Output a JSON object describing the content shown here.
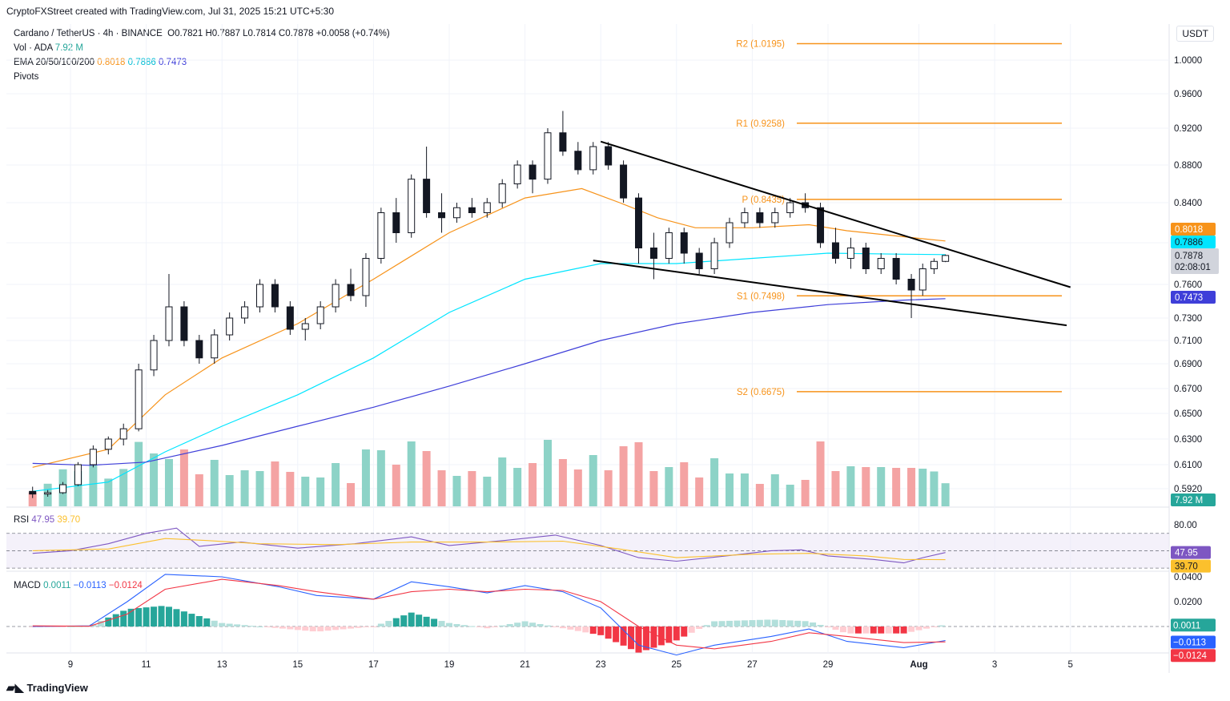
{
  "caption": "CryptoFXStreet created with TradingView.com, Jul 31, 2025 15:21 UTC+5:30",
  "legend": {
    "symbol": "Cardano / TetherUS · 4h · BINANCE",
    "ohlc": "O0.7821 H0.7887 L0.7814 C0.7878",
    "change": "+0.0058 (+0.74%)",
    "vol_label": "Vol · ADA",
    "vol_value": "7.92 M",
    "ema_label": "EMA 20/50/100/200",
    "ema_20": "0.8018",
    "ema_50": "0.7886",
    "ema_100": "0.7473",
    "pivots_label": "Pivots"
  },
  "currency": "USDT",
  "footer": "TradingView",
  "colors": {
    "up": "#26a69a",
    "down": "#000000",
    "ema20": "#f7931a",
    "ema50": "#00e5ff",
    "ema200": "#3f3fd9",
    "pivot": "#f7931a",
    "rsi": "#7e57c2",
    "rsi_ma": "#fbc02d",
    "macd": "#2962ff",
    "signal": "#f23645"
  },
  "chart_data": [
    {
      "type": "line",
      "title": "Cardano / TetherUS · 4h · BINANCE",
      "x_ticks": [
        "9",
        "11",
        "13",
        "15",
        "17",
        "19",
        "21",
        "23",
        "25",
        "27",
        "29",
        "Aug",
        "3",
        "5"
      ],
      "y_ticks": [
        "1.0000",
        "0.9600",
        "0.9200",
        "0.8800",
        "0.8400",
        "0.8000",
        "0.7600",
        "0.7300",
        "0.7100",
        "0.6900",
        "0.6700",
        "0.6500",
        "0.6300",
        "0.6100",
        "0.5920"
      ],
      "ylim": [
        0.585,
        1.04
      ],
      "price_badges": [
        {
          "label": "0.8018",
          "value": 0.8018,
          "color": "#f7931a"
        },
        {
          "label": "0.7886",
          "value": 0.7886,
          "color": "#00e5ff"
        },
        {
          "label": "0.7878",
          "value": 0.7878,
          "color": "#131722",
          "sub": "02:08:01"
        },
        {
          "label": "0.7473",
          "value": 0.7473,
          "color": "#3f3fd9"
        }
      ],
      "pivots": [
        {
          "label": "R2 (1.0195)",
          "value": 1.0195
        },
        {
          "label": "R1 (0.9258)",
          "value": 0.9258
        },
        {
          "label": "P (0.8435)",
          "value": 0.8435
        },
        {
          "label": "S1 (0.7498)",
          "value": 0.7498
        },
        {
          "label": "S2 (0.6675)",
          "value": 0.6675
        }
      ],
      "trendlines": [
        {
          "name": "upper",
          "from": [
            23.0,
            0.9055
          ],
          "to": [
            35.4,
            0.7575
          ]
        },
        {
          "name": "lower",
          "from": [
            22.8,
            0.783
          ],
          "to": [
            35.3,
            0.7235
          ]
        }
      ],
      "candles": [
        {
          "x": 8.0,
          "o": 0.59,
          "h": 0.5935,
          "l": 0.585,
          "c": 0.588
        },
        {
          "x": 8.4,
          "o": 0.588,
          "h": 0.591,
          "l": 0.586,
          "c": 0.589
        },
        {
          "x": 8.8,
          "o": 0.589,
          "h": 0.597,
          "l": 0.588,
          "c": 0.595
        },
        {
          "x": 9.2,
          "o": 0.595,
          "h": 0.612,
          "l": 0.594,
          "c": 0.61
        },
        {
          "x": 9.6,
          "o": 0.61,
          "h": 0.625,
          "l": 0.608,
          "c": 0.622
        },
        {
          "x": 10.0,
          "o": 0.622,
          "h": 0.632,
          "l": 0.618,
          "c": 0.63
        },
        {
          "x": 10.4,
          "o": 0.63,
          "h": 0.642,
          "l": 0.625,
          "c": 0.638
        },
        {
          "x": 10.8,
          "o": 0.638,
          "h": 0.69,
          "l": 0.636,
          "c": 0.685
        },
        {
          "x": 11.2,
          "o": 0.685,
          "h": 0.715,
          "l": 0.68,
          "c": 0.71
        },
        {
          "x": 11.6,
          "o": 0.71,
          "h": 0.77,
          "l": 0.705,
          "c": 0.74
        },
        {
          "x": 12.0,
          "o": 0.74,
          "h": 0.745,
          "l": 0.705,
          "c": 0.71
        },
        {
          "x": 12.4,
          "o": 0.71,
          "h": 0.715,
          "l": 0.69,
          "c": 0.695
        },
        {
          "x": 12.8,
          "o": 0.695,
          "h": 0.72,
          "l": 0.69,
          "c": 0.715
        },
        {
          "x": 13.2,
          "o": 0.715,
          "h": 0.735,
          "l": 0.71,
          "c": 0.73
        },
        {
          "x": 13.6,
          "o": 0.73,
          "h": 0.745,
          "l": 0.725,
          "c": 0.74
        },
        {
          "x": 14.0,
          "o": 0.74,
          "h": 0.765,
          "l": 0.735,
          "c": 0.76
        },
        {
          "x": 14.4,
          "o": 0.76,
          "h": 0.765,
          "l": 0.735,
          "c": 0.74
        },
        {
          "x": 14.8,
          "o": 0.74,
          "h": 0.745,
          "l": 0.715,
          "c": 0.72
        },
        {
          "x": 15.2,
          "o": 0.72,
          "h": 0.73,
          "l": 0.71,
          "c": 0.725
        },
        {
          "x": 15.6,
          "o": 0.725,
          "h": 0.745,
          "l": 0.72,
          "c": 0.74
        },
        {
          "x": 16.0,
          "o": 0.74,
          "h": 0.765,
          "l": 0.735,
          "c": 0.76
        },
        {
          "x": 16.4,
          "o": 0.76,
          "h": 0.775,
          "l": 0.745,
          "c": 0.75
        },
        {
          "x": 16.8,
          "o": 0.75,
          "h": 0.79,
          "l": 0.74,
          "c": 0.785
        },
        {
          "x": 17.2,
          "o": 0.785,
          "h": 0.835,
          "l": 0.78,
          "c": 0.83
        },
        {
          "x": 17.6,
          "o": 0.83,
          "h": 0.845,
          "l": 0.8,
          "c": 0.81
        },
        {
          "x": 18.0,
          "o": 0.81,
          "h": 0.87,
          "l": 0.805,
          "c": 0.865
        },
        {
          "x": 18.4,
          "o": 0.865,
          "h": 0.9,
          "l": 0.825,
          "c": 0.83
        },
        {
          "x": 18.8,
          "o": 0.83,
          "h": 0.85,
          "l": 0.81,
          "c": 0.825
        },
        {
          "x": 19.2,
          "o": 0.825,
          "h": 0.84,
          "l": 0.82,
          "c": 0.835
        },
        {
          "x": 19.6,
          "o": 0.835,
          "h": 0.845,
          "l": 0.825,
          "c": 0.83
        },
        {
          "x": 20.0,
          "o": 0.83,
          "h": 0.845,
          "l": 0.825,
          "c": 0.84
        },
        {
          "x": 20.4,
          "o": 0.84,
          "h": 0.865,
          "l": 0.835,
          "c": 0.86
        },
        {
          "x": 20.8,
          "o": 0.86,
          "h": 0.885,
          "l": 0.855,
          "c": 0.88
        },
        {
          "x": 21.2,
          "o": 0.88,
          "h": 0.885,
          "l": 0.85,
          "c": 0.865
        },
        {
          "x": 21.6,
          "o": 0.865,
          "h": 0.92,
          "l": 0.86,
          "c": 0.915
        },
        {
          "x": 22.0,
          "o": 0.915,
          "h": 0.94,
          "l": 0.89,
          "c": 0.895
        },
        {
          "x": 22.4,
          "o": 0.895,
          "h": 0.905,
          "l": 0.87,
          "c": 0.875
        },
        {
          "x": 22.8,
          "o": 0.875,
          "h": 0.905,
          "l": 0.87,
          "c": 0.9
        },
        {
          "x": 23.2,
          "o": 0.9,
          "h": 0.905,
          "l": 0.875,
          "c": 0.88
        },
        {
          "x": 23.6,
          "o": 0.88,
          "h": 0.885,
          "l": 0.84,
          "c": 0.845
        },
        {
          "x": 24.0,
          "o": 0.845,
          "h": 0.85,
          "l": 0.78,
          "c": 0.795
        },
        {
          "x": 24.4,
          "o": 0.795,
          "h": 0.81,
          "l": 0.765,
          "c": 0.785
        },
        {
          "x": 24.8,
          "o": 0.785,
          "h": 0.815,
          "l": 0.78,
          "c": 0.81
        },
        {
          "x": 25.2,
          "o": 0.81,
          "h": 0.815,
          "l": 0.78,
          "c": 0.79
        },
        {
          "x": 25.6,
          "o": 0.79,
          "h": 0.795,
          "l": 0.77,
          "c": 0.775
        },
        {
          "x": 26.0,
          "o": 0.775,
          "h": 0.805,
          "l": 0.77,
          "c": 0.8
        },
        {
          "x": 26.4,
          "o": 0.8,
          "h": 0.825,
          "l": 0.795,
          "c": 0.82
        },
        {
          "x": 26.8,
          "o": 0.82,
          "h": 0.835,
          "l": 0.815,
          "c": 0.83
        },
        {
          "x": 27.2,
          "o": 0.83,
          "h": 0.835,
          "l": 0.815,
          "c": 0.82
        },
        {
          "x": 27.6,
          "o": 0.82,
          "h": 0.835,
          "l": 0.815,
          "c": 0.83
        },
        {
          "x": 28.0,
          "o": 0.83,
          "h": 0.845,
          "l": 0.825,
          "c": 0.84
        },
        {
          "x": 28.4,
          "o": 0.84,
          "h": 0.85,
          "l": 0.83,
          "c": 0.835
        },
        {
          "x": 28.8,
          "o": 0.835,
          "h": 0.84,
          "l": 0.795,
          "c": 0.8
        },
        {
          "x": 29.2,
          "o": 0.8,
          "h": 0.815,
          "l": 0.78,
          "c": 0.785
        },
        {
          "x": 29.6,
          "o": 0.785,
          "h": 0.805,
          "l": 0.775,
          "c": 0.795
        },
        {
          "x": 30.0,
          "o": 0.795,
          "h": 0.8,
          "l": 0.77,
          "c": 0.775
        },
        {
          "x": 30.4,
          "o": 0.775,
          "h": 0.79,
          "l": 0.77,
          "c": 0.785
        },
        {
          "x": 30.8,
          "o": 0.785,
          "h": 0.79,
          "l": 0.76,
          "c": 0.765
        },
        {
          "x": 31.2,
          "o": 0.765,
          "h": 0.77,
          "l": 0.73,
          "c": 0.755
        },
        {
          "x": 31.5,
          "o": 0.755,
          "h": 0.78,
          "l": 0.75,
          "c": 0.775
        },
        {
          "x": 31.8,
          "o": 0.775,
          "h": 0.785,
          "l": 0.77,
          "c": 0.7821
        },
        {
          "x": 32.1,
          "o": 0.7821,
          "h": 0.7887,
          "l": 0.7814,
          "c": 0.7878
        }
      ],
      "ema20": [
        [
          8.0,
          0.608
        ],
        [
          10.0,
          0.622
        ],
        [
          11.5,
          0.665
        ],
        [
          13.0,
          0.695
        ],
        [
          15.0,
          0.725
        ],
        [
          17.0,
          0.765
        ],
        [
          19.0,
          0.81
        ],
        [
          21.0,
          0.845
        ],
        [
          22.5,
          0.855
        ],
        [
          23.5,
          0.84
        ],
        [
          24.5,
          0.825
        ],
        [
          25.5,
          0.815
        ],
        [
          27.0,
          0.815
        ],
        [
          28.5,
          0.818
        ],
        [
          29.5,
          0.812
        ],
        [
          30.5,
          0.808
        ],
        [
          31.5,
          0.804
        ],
        [
          32.1,
          0.8018
        ]
      ],
      "ema50": [
        [
          8.0,
          0.59
        ],
        [
          10.0,
          0.597
        ],
        [
          11.5,
          0.62
        ],
        [
          13.0,
          0.64
        ],
        [
          15.0,
          0.665
        ],
        [
          17.0,
          0.695
        ],
        [
          19.0,
          0.735
        ],
        [
          21.0,
          0.765
        ],
        [
          23.0,
          0.78
        ],
        [
          25.0,
          0.78
        ],
        [
          27.0,
          0.785
        ],
        [
          29.0,
          0.79
        ],
        [
          31.0,
          0.789
        ],
        [
          32.1,
          0.7886
        ]
      ],
      "ema200": [
        [
          8.0,
          0.611
        ],
        [
          9.5,
          0.6095
        ],
        [
          11.0,
          0.612
        ],
        [
          13.0,
          0.625
        ],
        [
          15.0,
          0.64
        ],
        [
          17.0,
          0.655
        ],
        [
          19.0,
          0.672
        ],
        [
          21.0,
          0.69
        ],
        [
          23.0,
          0.71
        ],
        [
          25.0,
          0.725
        ],
        [
          27.0,
          0.735
        ],
        [
          29.0,
          0.742
        ],
        [
          31.0,
          0.746
        ],
        [
          32.1,
          0.7473
        ]
      ]
    },
    {
      "type": "bar",
      "title": "Vol · ADA",
      "value_label": "7.92 M"
    },
    {
      "type": "line",
      "title": "RSI",
      "series": [
        {
          "name": "47.95",
          "values": [
            [
              8.0,
              47
            ],
            [
              9.0,
              50
            ],
            [
              10.0,
              58
            ],
            [
              11.0,
              70
            ],
            [
              11.8,
              76
            ],
            [
              12.4,
              55
            ],
            [
              13.5,
              60
            ],
            [
              15.0,
              53
            ],
            [
              16.5,
              58
            ],
            [
              18.0,
              66
            ],
            [
              19.0,
              56
            ],
            [
              20.5,
              62
            ],
            [
              21.8,
              68
            ],
            [
              23.0,
              56
            ],
            [
              24.0,
              42
            ],
            [
              25.0,
              38
            ],
            [
              26.5,
              45
            ],
            [
              27.5,
              50
            ],
            [
              28.3,
              51
            ],
            [
              29.0,
              44
            ],
            [
              30.2,
              40
            ],
            [
              31.0,
              36
            ],
            [
              31.5,
              42
            ],
            [
              32.1,
              47.95
            ]
          ]
        },
        {
          "name": "39.70",
          "values": [
            [
              8.0,
              50
            ],
            [
              10.0,
              52
            ],
            [
              11.5,
              64
            ],
            [
              12.5,
              62
            ],
            [
              14.0,
              58
            ],
            [
              16.0,
              57
            ],
            [
              18.0,
              60
            ],
            [
              20.0,
              60
            ],
            [
              22.0,
              61
            ],
            [
              23.5,
              52
            ],
            [
              25.0,
              42
            ],
            [
              27.0,
              46
            ],
            [
              28.5,
              47
            ],
            [
              30.0,
              44
            ],
            [
              31.0,
              40
            ],
            [
              32.1,
              39.7
            ]
          ]
        }
      ],
      "y_ticks": [
        "80.00"
      ],
      "badges": [
        "47.95",
        "39.70"
      ]
    },
    {
      "type": "line",
      "title": "MACD",
      "series": [
        {
          "name": "0.0011",
          "values": [
            [
              8.0,
              0.0
            ],
            [
              9.5,
              0.0005
            ],
            [
              10.5,
              0.02
            ],
            [
              11.5,
              0.042
            ],
            [
              13.0,
              0.04
            ],
            [
              14.5,
              0.032
            ],
            [
              15.5,
              0.025
            ],
            [
              17.0,
              0.022
            ],
            [
              18.0,
              0.036
            ],
            [
              19.0,
              0.032
            ],
            [
              20.0,
              0.027
            ],
            [
              21.0,
              0.033
            ],
            [
              22.0,
              0.028
            ],
            [
              23.0,
              0.015
            ],
            [
              24.0,
              -0.015
            ],
            [
              25.0,
              -0.023
            ],
            [
              26.0,
              -0.015
            ],
            [
              27.5,
              -0.008
            ],
            [
              28.5,
              -0.002
            ],
            [
              29.5,
              -0.012
            ],
            [
              31.0,
              -0.017
            ],
            [
              32.1,
              -0.0113
            ]
          ]
        },
        {
          "name": "-0.0113",
          "values": [
            [
              8.0,
              0.0005
            ],
            [
              9.5,
              0.0002
            ],
            [
              10.5,
              0.01
            ],
            [
              11.5,
              0.03
            ],
            [
              13.0,
              0.038
            ],
            [
              14.5,
              0.033
            ],
            [
              15.5,
              0.028
            ],
            [
              17.0,
              0.022
            ],
            [
              18.0,
              0.028
            ],
            [
              19.0,
              0.03
            ],
            [
              20.0,
              0.028
            ],
            [
              21.0,
              0.03
            ],
            [
              22.0,
              0.029
            ],
            [
              23.0,
              0.02
            ],
            [
              24.0,
              0.0
            ],
            [
              25.0,
              -0.015
            ],
            [
              26.0,
              -0.018
            ],
            [
              27.5,
              -0.012
            ],
            [
              28.5,
              -0.005
            ],
            [
              29.5,
              -0.008
            ],
            [
              31.0,
              -0.013
            ],
            [
              32.1,
              -0.0124
            ]
          ]
        }
      ],
      "y_ticks": [
        "0.0400",
        "0.0200"
      ],
      "badges": [
        "0.0011",
        "−0.0113",
        "−0.0124"
      ],
      "legend_values": [
        "0.0011",
        "−0.0113",
        "−0.0124"
      ]
    }
  ]
}
